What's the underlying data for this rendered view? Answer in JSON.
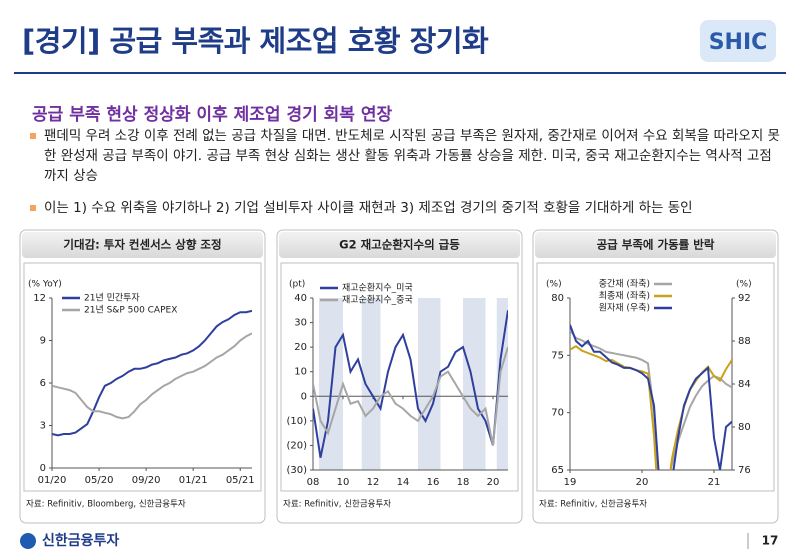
{
  "title": "[경기] 공급 부족과 제조업 호황 장기화",
  "logo": "SHIC",
  "subtitle": "공급 부족 현상 정상화 이후 제조업 경기 회복 연장",
  "bullets": [
    "팬데믹 우려 소강 이후 전례 없는 공급 차질을 대면. 반도체로 시작된 공급 부족은 원자재, 중간재로 이어져 수요 회복을 따라오지 못한 완성재 공급 부족이 야기. 공급 부족 현상 심화는 생산 활동 위축과 가동률 상승을 제한. 미국, 중국 재고순환지수는 역사적 고점까지 상승",
    "이는 1) 수요 위축을 야기하나 2) 기업 설비투자 사이클 재현과 3) 제조업 경기의 중기적 호황을 기대하게 하는 동인"
  ],
  "footer": {
    "company": "신한금융투자",
    "page": "17"
  },
  "chart_data": [
    {
      "type": "line",
      "title": "기대감: 투자 컨센서스 상향 조정",
      "y_label": "(% YoY)",
      "source": "자료: Refinitiv, Bloomberg, 신한금융투자",
      "categories": [
        "01/20",
        null,
        null,
        null,
        null,
        null,
        null,
        null,
        "05/20",
        null,
        null,
        null,
        null,
        null,
        null,
        null,
        "09/20",
        null,
        null,
        null,
        null,
        null,
        null,
        null,
        "01/21",
        null,
        null,
        null,
        null,
        null,
        null,
        null,
        "05/21",
        null,
        null
      ],
      "series": [
        {
          "name": "21년 민간투자",
          "color": "#2e3f9e",
          "values": [
            2.4,
            2.3,
            2.4,
            2.4,
            2.5,
            2.8,
            3.1,
            4,
            5,
            5.8,
            6,
            6.3,
            6.5,
            6.8,
            7,
            7,
            7.1,
            7.3,
            7.4,
            7.6,
            7.7,
            7.8,
            8,
            8.1,
            8.3,
            8.6,
            9,
            9.5,
            10,
            10.3,
            10.5,
            10.8,
            11,
            11,
            11.1
          ]
        },
        {
          "name": "21년 S&P 500 CAPEX",
          "color": "#a6a6a6",
          "values": [
            5.8,
            5.7,
            5.6,
            5.5,
            5.3,
            4.8,
            4.3,
            4,
            4,
            3.9,
            3.8,
            3.6,
            3.5,
            3.6,
            4,
            4.5,
            4.8,
            5.2,
            5.5,
            5.8,
            6,
            6.3,
            6.5,
            6.7,
            6.8,
            7,
            7.2,
            7.5,
            7.8,
            8,
            8.3,
            8.6,
            9,
            9.3,
            9.5
          ]
        }
      ],
      "ylim": [
        0,
        12
      ],
      "yticks": [
        0,
        3,
        6,
        9,
        12
      ]
    },
    {
      "type": "line",
      "title": "G2 재고순환지수의 급등",
      "y_label": "(pt)",
      "source": "자료: Refinitiv, 신한금융투자",
      "categories": [
        "08",
        null,
        null,
        null,
        "10",
        null,
        null,
        null,
        "12",
        null,
        null,
        null,
        "14",
        null,
        null,
        null,
        "16",
        null,
        null,
        null,
        "18",
        null,
        null,
        null,
        "20",
        null,
        null
      ],
      "series": [
        {
          "name": "재고순환지수_미국",
          "color": "#2e3f9e",
          "values": [
            -5,
            -25,
            -10,
            20,
            25,
            10,
            15,
            5,
            0,
            -5,
            10,
            20,
            25,
            15,
            -5,
            -10,
            -3,
            10,
            12,
            18,
            20,
            10,
            -5,
            -10,
            -20,
            15,
            35
          ]
        },
        {
          "name": "재고순환지수_중국",
          "color": "#a6a6a6",
          "values": [
            5,
            -10,
            -15,
            -5,
            5,
            -3,
            -2,
            -8,
            -5,
            0,
            2,
            -3,
            -5,
            -8,
            -10,
            -5,
            0,
            8,
            10,
            5,
            0,
            -5,
            -8,
            -5,
            -20,
            10,
            20
          ]
        }
      ],
      "ylim": [
        -30,
        40
      ],
      "yticks": [
        {
          "value": -30,
          "label": "(30)"
        },
        {
          "value": -20,
          "label": "(20)"
        },
        {
          "value": -10,
          "label": "(10)"
        },
        0,
        10,
        20,
        30,
        40
      ]
    },
    {
      "type": "line",
      "title": "공급 부족에 가동률 반락",
      "y_label": "(%)",
      "y2_label": "(%)",
      "source": "자료: Refinitiv, 신한금융투자",
      "categories": [
        "19",
        null,
        null,
        null,
        null,
        null,
        null,
        null,
        null,
        null,
        null,
        null,
        "20",
        null,
        null,
        null,
        null,
        null,
        null,
        null,
        null,
        null,
        null,
        null,
        "21",
        null,
        null,
        null
      ],
      "series": [
        {
          "name": "중간재 (좌축)",
          "color": "#a6a6a6",
          "values": [
            77.2,
            76.5,
            76.3,
            76,
            75.8,
            75.6,
            75.3,
            75.2,
            75.1,
            75,
            74.9,
            74.8,
            74.6,
            74.3,
            70,
            62,
            63,
            65.5,
            67.5,
            69,
            70.5,
            71.5,
            72.3,
            72.8,
            73.2,
            73,
            72.5,
            72.2
          ]
        },
        {
          "name": "최종재 (좌축)",
          "color": "#c9a21b",
          "values": [
            75.5,
            75.8,
            75.4,
            75.2,
            75,
            74.8,
            74.5,
            74.6,
            74.3,
            74,
            73.9,
            73.7,
            73.6,
            73.4,
            68,
            60,
            62,
            66,
            68.5,
            70.5,
            72,
            72.8,
            73.5,
            74,
            73.2,
            72.8,
            73.8,
            74.6
          ]
        },
        {
          "name": "원자재 (우축)",
          "color": "#2e3f9e",
          "axis": "y2",
          "values": [
            89.5,
            88,
            87.5,
            88,
            87,
            87,
            86.5,
            86,
            85.8,
            85.5,
            85.5,
            85.3,
            85,
            84.5,
            82,
            74,
            72,
            75,
            79,
            82,
            83.5,
            84.5,
            85,
            85.5,
            79,
            76,
            80,
            80.5
          ]
        }
      ],
      "ylim": [
        65,
        80
      ],
      "yticks": [
        65,
        70,
        75,
        80
      ],
      "y2lim": [
        76,
        92
      ],
      "y2ticks": [
        76,
        80,
        84,
        88,
        92
      ]
    }
  ]
}
